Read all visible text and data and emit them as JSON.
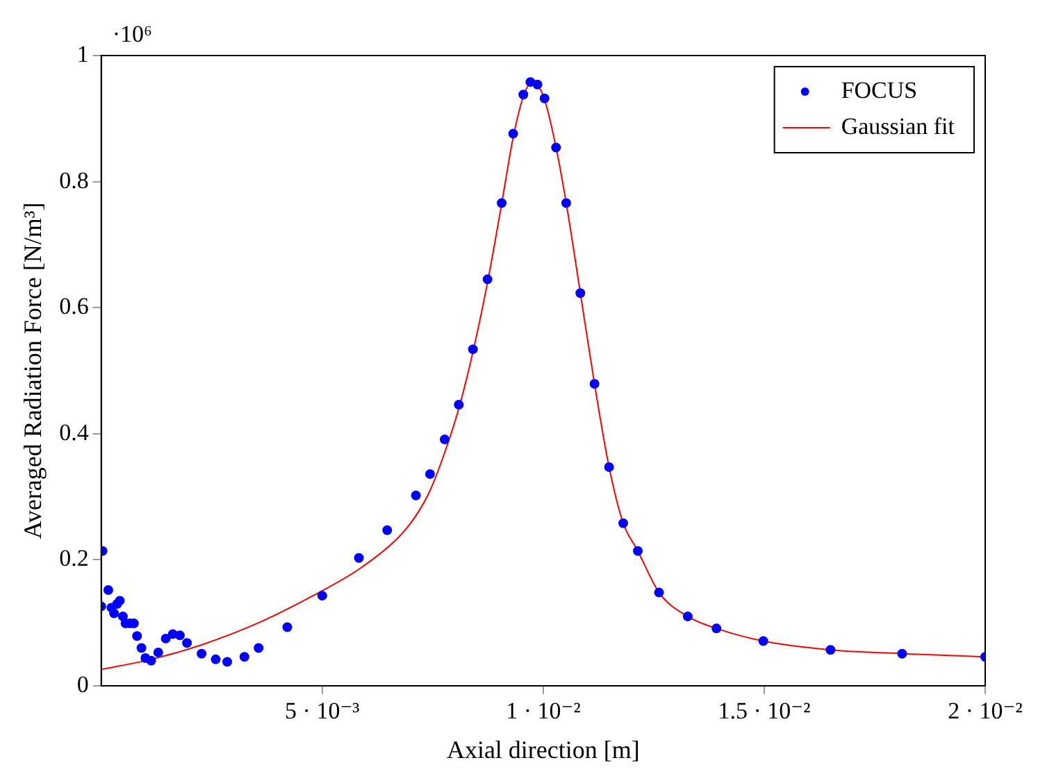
{
  "chart_data": {
    "type": "scatter",
    "xlabel": "Axial direction [m]",
    "ylabel": "Averaged Radiation Force [N/m³]",
    "annotations": [
      "·10⁶"
    ],
    "xlim": [
      0,
      0.02
    ],
    "xticks": [
      {
        "value": 0.005,
        "label": "5 · 10⁻³"
      },
      {
        "value": 0.01,
        "label": "1 · 10⁻²"
      },
      {
        "value": 0.015,
        "label": "1.5 · 10⁻²"
      },
      {
        "value": 0.02,
        "label": "2 · 10⁻²"
      }
    ],
    "ylim": [
      0,
      1
    ],
    "yticks": [
      0,
      0.2,
      0.4,
      0.6,
      0.8,
      1
    ],
    "grid": false,
    "legend": "top right",
    "marker": "circle",
    "series": [
      {
        "name": "FOCUS",
        "color": "#0000ff",
        "x": [
          0,
          3e-05,
          0.0001,
          0.00016,
          0.00023,
          0.00029,
          0.00036,
          0.00042,
          0.00049,
          0.00055,
          0.00065,
          0.00074,
          0.00081,
          0.00091,
          0.001,
          0.00113,
          0.00129,
          0.00146,
          0.00162,
          0.00178,
          0.00194,
          0.00227,
          0.00259,
          0.00285,
          0.00324,
          0.00356,
          0.00421,
          0.005,
          0.00583,
          0.00647,
          0.00712,
          0.00744,
          0.00777,
          0.00809,
          0.00841,
          0.00874,
          0.00906,
          0.00932,
          0.00955,
          0.00971,
          0.00987,
          0.01003,
          0.01029,
          0.01052,
          0.01084,
          0.01116,
          0.01149,
          0.01181,
          0.01214,
          0.01262,
          0.01327,
          0.01392,
          0.01498,
          0.0165,
          0.01812,
          0.02
        ],
        "values": [
          0.126,
          0.214,
          null,
          0.152,
          0.124,
          0.115,
          0.13,
          0.135,
          0.11,
          0.099,
          0.099,
          0.099,
          0.079,
          0.06,
          0.044,
          0.04,
          0.053,
          0.075,
          0.082,
          0.08,
          0.068,
          0.051,
          0.042,
          0.038,
          0.046,
          0.06,
          0.093,
          0.143,
          0.203,
          0.247,
          0.302,
          0.336,
          0.391,
          0.446,
          0.534,
          0.645,
          0.766,
          0.876,
          0.938,
          0.958,
          0.954,
          0.932,
          0.854,
          0.766,
          0.623,
          0.479,
          0.347,
          0.258,
          0.214,
          0.148,
          0.11,
          0.091,
          0.071,
          0.057,
          0.051,
          0.046
        ]
      },
      {
        "name": "Gaussian fit",
        "type": "line",
        "color": "#ff0000",
        "marker": "none",
        "x": [
          0,
          0.00113,
          0.00227,
          0.00356,
          0.00479,
          0.00583,
          0.00673,
          0.00712,
          0.00744,
          0.00777,
          0.00809,
          0.00841,
          0.00874,
          0.00906,
          0.00932,
          0.00955,
          0.00971,
          0.00987,
          0.01003,
          0.01029,
          0.01052,
          0.01084,
          0.01116,
          0.01149,
          0.01181,
          0.01214,
          0.01262,
          0.01327,
          0.01392,
          0.01498,
          0.0165,
          0.01812,
          0.02
        ],
        "values": [
          0.026,
          0.042,
          0.065,
          0.1,
          0.143,
          0.185,
          0.236,
          0.27,
          0.31,
          0.37,
          0.44,
          0.53,
          0.64,
          0.765,
          0.87,
          0.935,
          0.955,
          0.952,
          0.93,
          0.854,
          0.766,
          0.623,
          0.479,
          0.347,
          0.258,
          0.214,
          0.148,
          0.11,
          0.091,
          0.071,
          0.057,
          0.051,
          0.046
        ]
      }
    ]
  }
}
